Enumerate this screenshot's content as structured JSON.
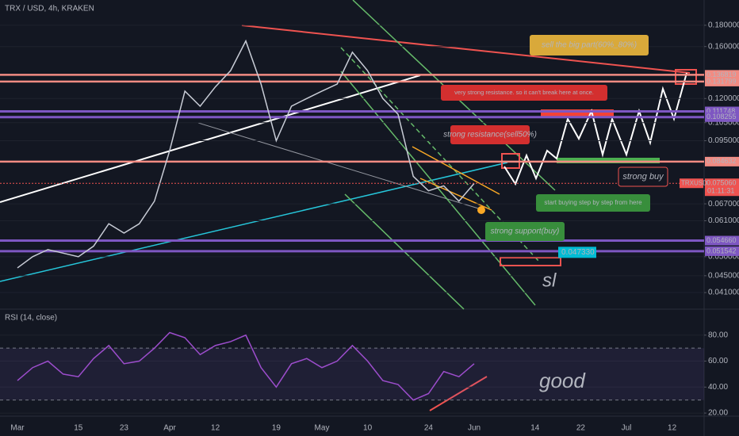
{
  "chart_data": [
    {
      "type": "line",
      "title": "TRX / USD, 4h, KRAKEN",
      "log_scale": true,
      "grid": true,
      "color": "#c8ccd6",
      "categories": [
        "Mar",
        null,
        null,
        null,
        "15",
        null,
        null,
        "23",
        null,
        null,
        "Apr",
        null,
        null,
        "12",
        null,
        null,
        null,
        "19",
        null,
        null,
        "May",
        null,
        null,
        "10",
        null,
        null,
        null,
        "24",
        null,
        null,
        "Jun",
        null,
        null,
        null,
        "14",
        null,
        null,
        "22",
        null,
        null,
        "Jul",
        null,
        null,
        "12"
      ],
      "values": [
        0.047,
        0.05,
        0.052,
        0.051,
        0.05,
        0.053,
        0.06,
        0.057,
        0.06,
        0.068,
        0.09,
        0.125,
        0.115,
        0.128,
        0.14,
        0.165,
        0.13,
        0.095,
        0.115,
        0.12,
        0.125,
        0.13,
        0.155,
        0.14,
        0.12,
        0.11,
        0.078,
        0.072,
        0.074,
        0.068,
        0.075,
        null,
        null,
        null,
        null,
        null,
        null,
        null,
        null,
        null,
        null,
        null,
        null,
        null
      ],
      "ylim": [
        0.0374,
        0.207
      ],
      "yticks": [
        {
          "value": 0.18,
          "label": "0.180000"
        },
        {
          "value": 0.16,
          "label": "0.160000"
        },
        {
          "value": 0.12,
          "label": "0.120000"
        },
        {
          "value": 0.105,
          "label": "0.105000"
        },
        {
          "value": 0.095,
          "label": "0.095000"
        },
        {
          "value": 0.067,
          "label": "0.067000"
        },
        {
          "value": 0.061,
          "label": "0.061000"
        },
        {
          "value": 0.05,
          "label": "0.050000"
        },
        {
          "value": 0.045,
          "label": "0.045000"
        },
        {
          "value": 0.041,
          "label": "0.041000"
        }
      ],
      "levels": [
        {
          "value": 0.136819,
          "color": "#f28b82"
        },
        {
          "value": 0.131799,
          "color": "#f28b82"
        },
        {
          "value": 0.111748,
          "color": "#7e57c2"
        },
        {
          "value": 0.108255,
          "color": "#7e57c2"
        },
        {
          "value": 0.084632,
          "color": "#f28b82"
        },
        {
          "value": 0.05466,
          "label": "0.054660",
          "color": "#7e57c2"
        },
        {
          "value": 0.051542,
          "color": "#7e57c2"
        }
      ],
      "last_price": {
        "value": 0.07506,
        "label": "0.075060",
        "color": "#ef5350"
      },
      "symbol": "TRXUSD",
      "countdown": "01:11:31",
      "target": {
        "value": 0.04733,
        "label": "0.047330",
        "color": "#00bcd4"
      },
      "annotations": [
        "sell the big part(60%_80%)",
        "very strong resistance. so it can't break here at once.",
        "strong resistance(sell50%)",
        "strong buy",
        "start buying step by step from here",
        "strong support(buy)",
        "sl",
        "good"
      ]
    },
    {
      "type": "line",
      "title": "RSI (14, close)",
      "color": "#9c4dcc",
      "values": [
        45,
        55,
        60,
        50,
        48,
        62,
        72,
        58,
        60,
        70,
        82,
        78,
        65,
        72,
        75,
        80,
        55,
        40,
        58,
        62,
        55,
        60,
        72,
        60,
        45,
        42,
        30,
        35,
        52,
        48,
        58,
        null,
        null,
        null,
        null,
        null,
        null,
        null,
        null,
        null,
        null,
        null,
        null,
        null
      ],
      "ylim": [
        17.6,
        100
      ],
      "bands": [
        30,
        70
      ],
      "yticks": [
        {
          "value": 20,
          "label": "20.00"
        },
        {
          "value": 40,
          "label": "40.00"
        },
        {
          "value": 60,
          "label": "60.00"
        },
        {
          "value": 80,
          "label": "80.00"
        }
      ]
    }
  ]
}
